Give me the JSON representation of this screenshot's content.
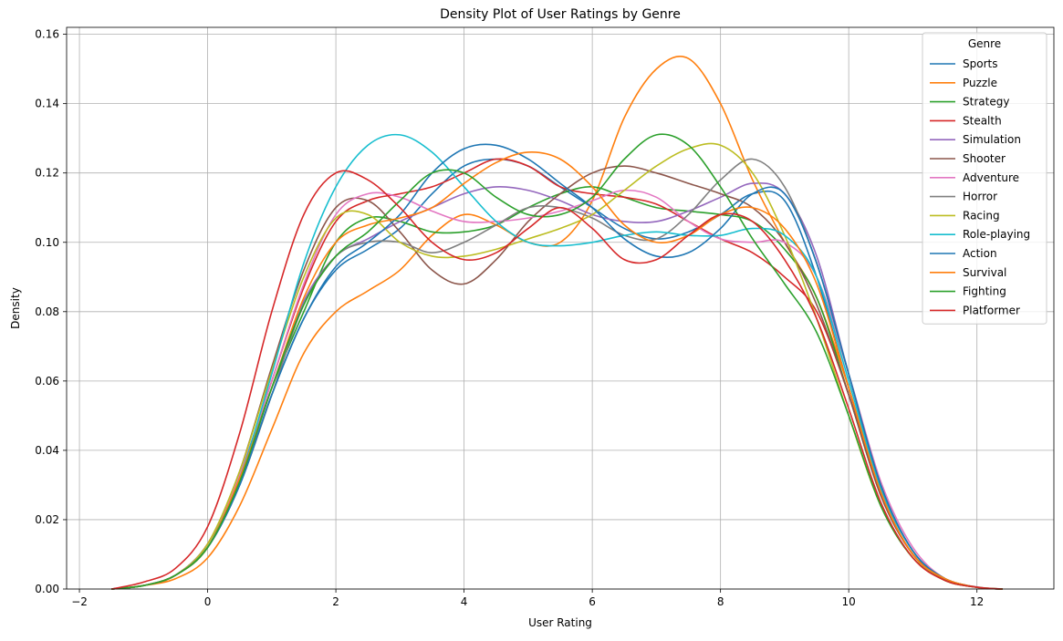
{
  "chart_data": {
    "type": "line",
    "title": "Density Plot of User Ratings by Genre",
    "xlabel": "User Rating",
    "ylabel": "Density",
    "xlim": [
      -2.2,
      13.2
    ],
    "ylim": [
      0,
      0.162
    ],
    "x_ticks": [
      -2,
      0,
      2,
      4,
      6,
      8,
      10,
      12
    ],
    "x_tick_labels": [
      "−2",
      "0",
      "2",
      "4",
      "6",
      "8",
      "10",
      "12"
    ],
    "y_ticks": [
      0.0,
      0.02,
      0.04,
      0.06,
      0.08,
      0.1,
      0.12,
      0.14,
      0.16
    ],
    "y_tick_labels": [
      "0.00",
      "0.02",
      "0.04",
      "0.06",
      "0.08",
      "0.10",
      "0.12",
      "0.14",
      "0.16"
    ],
    "grid": true,
    "legend": {
      "title": "Genre",
      "placement": "top-right"
    },
    "x": [
      -1.5,
      -1.0,
      -0.5,
      0.0,
      0.5,
      1.0,
      1.5,
      2.0,
      2.5,
      3.0,
      3.5,
      4.0,
      4.5,
      5.0,
      5.5,
      6.0,
      6.5,
      7.0,
      7.5,
      8.0,
      8.5,
      9.0,
      9.5,
      10.0,
      10.5,
      11.0,
      11.5,
      12.0,
      12.4
    ],
    "series": [
      {
        "name": "Sports",
        "color": "#1f77b4",
        "values": [
          0.0,
          0.001,
          0.004,
          0.012,
          0.03,
          0.056,
          0.078,
          0.092,
          0.098,
          0.104,
          0.114,
          0.122,
          0.124,
          0.122,
          0.116,
          0.11,
          0.104,
          0.101,
          0.103,
          0.108,
          0.114,
          0.112,
          0.09,
          0.058,
          0.028,
          0.01,
          0.003,
          0.0005,
          0.0
        ]
      },
      {
        "name": "Puzzle",
        "color": "#ff7f0e",
        "values": [
          0.0,
          0.001,
          0.003,
          0.009,
          0.024,
          0.046,
          0.068,
          0.08,
          0.086,
          0.092,
          0.102,
          0.108,
          0.105,
          0.1,
          0.1,
          0.112,
          0.136,
          0.15,
          0.153,
          0.14,
          0.118,
          0.1,
          0.084,
          0.058,
          0.028,
          0.01,
          0.003,
          0.0005,
          0.0
        ]
      },
      {
        "name": "Strategy",
        "color": "#2ca02c",
        "values": [
          0.0,
          0.001,
          0.004,
          0.013,
          0.032,
          0.058,
          0.08,
          0.1,
          0.107,
          0.106,
          0.103,
          0.103,
          0.105,
          0.11,
          0.114,
          0.116,
          0.113,
          0.11,
          0.109,
          0.108,
          0.106,
          0.098,
          0.084,
          0.056,
          0.027,
          0.01,
          0.003,
          0.0005,
          0.0
        ]
      },
      {
        "name": "Stealth",
        "color": "#d62728",
        "values": [
          0.0,
          0.001,
          0.004,
          0.013,
          0.033,
          0.06,
          0.087,
          0.106,
          0.112,
          0.114,
          0.116,
          0.12,
          0.124,
          0.122,
          0.116,
          0.114,
          0.113,
          0.111,
          0.106,
          0.101,
          0.097,
          0.09,
          0.08,
          0.056,
          0.027,
          0.01,
          0.003,
          0.0005,
          0.0
        ]
      },
      {
        "name": "Simulation",
        "color": "#9467bd",
        "values": [
          0.0,
          0.001,
          0.004,
          0.012,
          0.031,
          0.058,
          0.083,
          0.096,
          0.101,
          0.106,
          0.11,
          0.114,
          0.116,
          0.115,
          0.112,
          0.108,
          0.106,
          0.106,
          0.109,
          0.113,
          0.117,
          0.114,
          0.096,
          0.062,
          0.03,
          0.011,
          0.003,
          0.0005,
          0.0
        ]
      },
      {
        "name": "Shooter",
        "color": "#8c564b",
        "values": [
          0.0,
          0.001,
          0.004,
          0.013,
          0.034,
          0.064,
          0.092,
          0.11,
          0.112,
          0.103,
          0.092,
          0.088,
          0.095,
          0.106,
          0.114,
          0.12,
          0.122,
          0.12,
          0.117,
          0.114,
          0.11,
          0.1,
          0.082,
          0.056,
          0.027,
          0.01,
          0.003,
          0.0005,
          0.0
        ]
      },
      {
        "name": "Adventure",
        "color": "#e377c2",
        "values": [
          0.0,
          0.001,
          0.004,
          0.013,
          0.033,
          0.06,
          0.088,
          0.108,
          0.114,
          0.113,
          0.109,
          0.106,
          0.106,
          0.107,
          0.109,
          0.112,
          0.115,
          0.113,
          0.106,
          0.101,
          0.1,
          0.1,
          0.09,
          0.062,
          0.031,
          0.012,
          0.003,
          0.0006,
          0.0
        ]
      },
      {
        "name": "Horror",
        "color": "#7f7f7f",
        "values": [
          0.0,
          0.001,
          0.004,
          0.012,
          0.03,
          0.056,
          0.082,
          0.096,
          0.1,
          0.1,
          0.097,
          0.1,
          0.105,
          0.11,
          0.11,
          0.107,
          0.102,
          0.101,
          0.108,
          0.118,
          0.124,
          0.116,
          0.094,
          0.062,
          0.03,
          0.011,
          0.003,
          0.0005,
          0.0
        ]
      },
      {
        "name": "Racing",
        "color": "#bcbd22",
        "values": [
          0.0,
          0.001,
          0.004,
          0.013,
          0.034,
          0.063,
          0.09,
          0.107,
          0.108,
          0.1,
          0.096,
          0.096,
          0.098,
          0.101,
          0.104,
          0.108,
          0.115,
          0.122,
          0.127,
          0.128,
          0.12,
          0.102,
          0.078,
          0.05,
          0.024,
          0.009,
          0.0025,
          0.0005,
          0.0
        ]
      },
      {
        "name": "Role-playing",
        "color": "#17becf",
        "values": [
          0.0,
          0.001,
          0.004,
          0.012,
          0.032,
          0.062,
          0.094,
          0.116,
          0.128,
          0.131,
          0.126,
          0.116,
          0.106,
          0.1,
          0.099,
          0.1,
          0.102,
          0.103,
          0.102,
          0.102,
          0.104,
          0.102,
          0.09,
          0.06,
          0.029,
          0.011,
          0.003,
          0.0005,
          0.0
        ]
      },
      {
        "name": "Action",
        "color": "#1f77b4",
        "values": [
          0.0,
          0.001,
          0.004,
          0.012,
          0.03,
          0.056,
          0.078,
          0.093,
          0.1,
          0.108,
          0.12,
          0.127,
          0.128,
          0.124,
          0.117,
          0.11,
          0.101,
          0.096,
          0.097,
          0.104,
          0.114,
          0.114,
          0.094,
          0.062,
          0.03,
          0.011,
          0.003,
          0.0005,
          0.0
        ]
      },
      {
        "name": "Survival",
        "color": "#ff7f0e",
        "values": [
          0.0,
          0.001,
          0.004,
          0.012,
          0.032,
          0.058,
          0.084,
          0.1,
          0.105,
          0.107,
          0.11,
          0.117,
          0.123,
          0.126,
          0.124,
          0.116,
          0.105,
          0.1,
          0.102,
          0.108,
          0.11,
          0.104,
          0.088,
          0.058,
          0.028,
          0.01,
          0.003,
          0.0005,
          0.0
        ]
      },
      {
        "name": "Fighting",
        "color": "#2ca02c",
        "values": [
          0.0,
          0.001,
          0.004,
          0.012,
          0.031,
          0.058,
          0.082,
          0.096,
          0.103,
          0.112,
          0.12,
          0.12,
          0.113,
          0.108,
          0.108,
          0.113,
          0.124,
          0.131,
          0.128,
          0.116,
          0.101,
          0.088,
          0.074,
          0.05,
          0.024,
          0.009,
          0.0025,
          0.0005,
          0.0
        ]
      },
      {
        "name": "Platformer",
        "color": "#d62728",
        "values": [
          0.0,
          0.002,
          0.006,
          0.018,
          0.045,
          0.08,
          0.108,
          0.12,
          0.118,
          0.11,
          0.1,
          0.095,
          0.097,
          0.104,
          0.11,
          0.104,
          0.095,
          0.095,
          0.102,
          0.108,
          0.106,
          0.095,
          0.078,
          0.052,
          0.025,
          0.009,
          0.0025,
          0.0005,
          0.0
        ]
      }
    ]
  }
}
